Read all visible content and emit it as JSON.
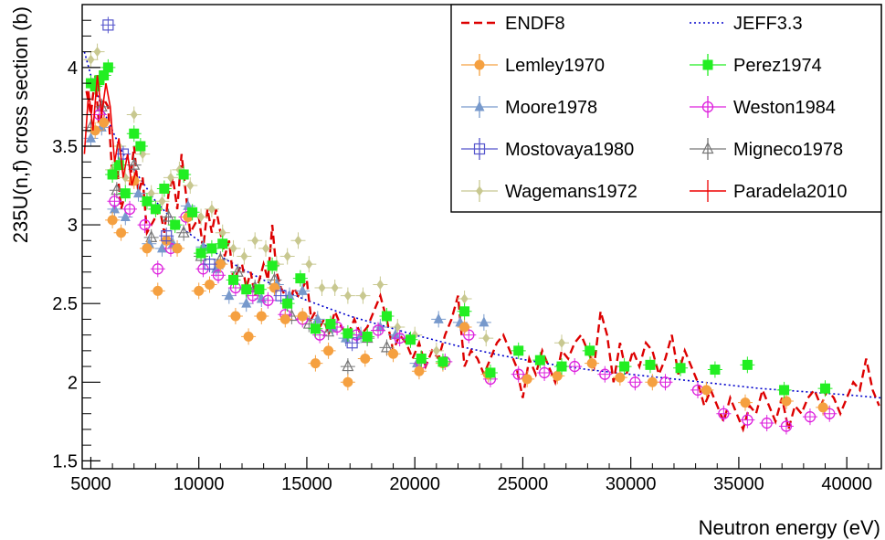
{
  "chart_data": {
    "type": "scatter",
    "title": "",
    "xlabel": "Neutron energy (eV)",
    "ylabel": "235U(n,f) cross section (b)",
    "xlim": [
      4600,
      41600
    ],
    "ylim": [
      1.45,
      4.4
    ],
    "x_ticks": [
      5000,
      10000,
      15000,
      20000,
      25000,
      30000,
      35000,
      40000
    ],
    "x_tick_labels": [
      "5000",
      "10000",
      "15000",
      "20000",
      "25000",
      "30000",
      "35000",
      "40000"
    ],
    "y_ticks": [
      1.5,
      2,
      2.5,
      3,
      3.5,
      4
    ],
    "y_tick_labels": [
      "1.5",
      "2",
      "2.5",
      "3",
      "3.5",
      "4"
    ],
    "grid": false,
    "legend_position": "top-right",
    "series": [
      {
        "name": "ENDF8",
        "kind": "line",
        "style": "dashed",
        "color": "#dd0000",
        "x": [
          4800,
          5000,
          5200,
          5400,
          5600,
          5800,
          6000,
          6200,
          6400,
          6600,
          6800,
          7000,
          7200,
          7400,
          7600,
          7800,
          8000,
          8200,
          8400,
          8600,
          8800,
          9000,
          9200,
          9400,
          9600,
          9800,
          10000,
          10200,
          10400,
          10600,
          10800,
          11000,
          11200,
          11400,
          11600,
          11800,
          12000,
          12200,
          12400,
          12600,
          12800,
          13000,
          13200,
          13400,
          13600,
          13800,
          14000,
          14200,
          14400,
          14600,
          14800,
          15000,
          15200,
          15400,
          15600,
          15800,
          16000,
          16300,
          16600,
          16900,
          17200,
          17500,
          17800,
          18100,
          18400,
          18700,
          19000,
          19300,
          19600,
          19900,
          20200,
          20500,
          20800,
          21100,
          21400,
          21700,
          22000,
          22300,
          22600,
          22900,
          23200,
          23500,
          23800,
          24100,
          24400,
          24700,
          25000,
          25300,
          25600,
          25900,
          26200,
          26500,
          26800,
          27100,
          27400,
          27700,
          28000,
          28300,
          28600,
          28900,
          29200,
          29500,
          29800,
          30100,
          30400,
          30700,
          31000,
          31300,
          31600,
          31900,
          32200,
          32500,
          32800,
          33100,
          33400,
          33700,
          34000,
          34300,
          34600,
          34900,
          35200,
          35500,
          35800,
          36100,
          36400,
          36700,
          37000,
          37300,
          37600,
          37900,
          38200,
          38500,
          38800,
          39100,
          39400,
          39700,
          40000,
          40300,
          40600,
          40900,
          41200,
          41500
        ],
        "y": [
          3.85,
          3.7,
          3.95,
          3.6,
          3.8,
          3.75,
          3.3,
          3.4,
          3.1,
          3.2,
          3.25,
          3.5,
          3.2,
          3.3,
          2.95,
          3.0,
          3.05,
          3.1,
          2.95,
          3.2,
          3.3,
          3.1,
          3.45,
          3.2,
          2.95,
          3.0,
          3.05,
          2.85,
          3.1,
          2.95,
          3.1,
          2.95,
          2.8,
          2.9,
          2.65,
          2.7,
          2.75,
          2.6,
          2.7,
          2.55,
          2.65,
          2.75,
          2.65,
          3.0,
          2.7,
          2.6,
          2.55,
          2.5,
          2.6,
          2.55,
          2.6,
          2.65,
          2.4,
          2.45,
          2.35,
          2.4,
          2.3,
          2.45,
          2.35,
          2.3,
          2.4,
          2.3,
          2.35,
          2.45,
          2.55,
          2.4,
          2.2,
          2.3,
          2.25,
          2.15,
          2.25,
          2.1,
          2.2,
          2.15,
          2.3,
          2.4,
          2.55,
          2.1,
          2.2,
          2.15,
          2.05,
          2.15,
          2.25,
          2.3,
          2.2,
          2.1,
          1.9,
          2.15,
          2.05,
          2.2,
          2.1,
          2.0,
          2.2,
          2.15,
          2.25,
          2.3,
          2.2,
          2.1,
          2.45,
          2.3,
          2.0,
          2.25,
          2.05,
          2.2,
          2.1,
          2.25,
          2.2,
          2.05,
          2.15,
          2.3,
          2.05,
          2.2,
          2.1,
          2.0,
          1.85,
          1.95,
          1.85,
          1.75,
          1.9,
          1.8,
          1.7,
          1.85,
          1.8,
          1.95,
          1.85,
          1.75,
          1.9,
          1.7,
          1.85,
          1.8,
          1.9,
          1.95,
          1.85,
          1.95,
          1.9,
          1.8,
          1.9,
          2.0,
          1.95,
          2.15,
          1.95,
          1.85
        ]
      },
      {
        "name": "JEFF3.3",
        "kind": "line",
        "style": "dotted",
        "color": "#0000cc",
        "x": [
          4700,
          5000,
          5500,
          6000,
          6500,
          7000,
          7500,
          8000,
          9000,
          10000,
          11000,
          12000,
          13000,
          14000,
          15000,
          16000,
          17000,
          18000,
          19000,
          20000,
          22000,
          24000,
          26000,
          28000,
          30000,
          32000,
          34000,
          36000,
          38000,
          40000,
          41600
        ],
        "y": [
          4.1,
          3.95,
          3.75,
          3.6,
          3.45,
          3.35,
          3.25,
          3.15,
          3.0,
          2.9,
          2.8,
          2.72,
          2.65,
          2.58,
          2.52,
          2.47,
          2.42,
          2.38,
          2.34,
          2.3,
          2.23,
          2.17,
          2.12,
          2.08,
          2.05,
          2.02,
          1.99,
          1.96,
          1.94,
          1.92,
          1.9
        ]
      },
      {
        "name": "Lemley1970",
        "kind": "marker",
        "marker": "circle",
        "color": "#f5a040",
        "x": [
          5200,
          5600,
          6000,
          6400,
          7000,
          7600,
          8100,
          8500,
          9000,
          9500,
          10000,
          10500,
          11000,
          11700,
          12300,
          12900,
          13500,
          14000,
          14800,
          15400,
          16000,
          16900,
          17700,
          19000,
          20200,
          21300,
          22300,
          23400,
          25200,
          26600,
          28200,
          29500,
          31000,
          33500,
          35300,
          37200,
          38900
        ],
        "y": [
          3.6,
          3.65,
          3.03,
          2.95,
          3.28,
          2.85,
          2.58,
          2.9,
          2.85,
          3.05,
          2.58,
          2.62,
          2.75,
          2.42,
          2.29,
          2.42,
          2.6,
          2.4,
          2.42,
          2.12,
          2.2,
          2.0,
          2.15,
          2.18,
          2.07,
          2.12,
          2.35,
          2.05,
          2.02,
          2.04,
          2.12,
          2.03,
          2.0,
          1.95,
          1.87,
          1.88,
          1.84
        ]
      },
      {
        "name": "Perez1974",
        "kind": "marker",
        "marker": "square",
        "color": "#22ee22",
        "x": [
          5000,
          5200,
          5400,
          5600,
          5800,
          6000,
          6300,
          6600,
          7000,
          7300,
          7600,
          8000,
          8400,
          8900,
          9300,
          9700,
          10100,
          10600,
          11100,
          11600,
          12200,
          12800,
          13400,
          14100,
          14700,
          15400,
          16100,
          16900,
          17800,
          18700,
          19800,
          20300,
          21300,
          22300,
          23500,
          24800,
          25800,
          26800,
          28100,
          29700,
          30900,
          32300,
          33900,
          35400,
          37100,
          39000
        ],
        "y": [
          3.9,
          3.88,
          3.92,
          3.95,
          4.0,
          3.32,
          3.38,
          3.2,
          3.58,
          3.5,
          3.15,
          3.1,
          3.23,
          3.0,
          3.32,
          3.08,
          2.82,
          2.85,
          2.88,
          2.65,
          2.59,
          2.59,
          2.74,
          2.5,
          2.66,
          2.34,
          2.37,
          2.31,
          2.29,
          2.42,
          2.27,
          2.15,
          2.13,
          2.45,
          2.06,
          2.2,
          2.14,
          2.1,
          2.2,
          2.1,
          2.11,
          2.09,
          2.08,
          2.11,
          1.95,
          1.96
        ]
      },
      {
        "name": "Moore1978",
        "kind": "marker",
        "marker": "triangle",
        "color": "#7799cc",
        "x": [
          5000,
          5500,
          6100,
          6600,
          7200,
          7700,
          8300,
          8800,
          9500,
          10200,
          10800,
          11400,
          12200,
          12900,
          13600,
          14200,
          14800,
          15500,
          16200,
          16800,
          17500,
          18400,
          19100,
          20100,
          21100,
          22100,
          23200
        ],
        "y": [
          3.55,
          3.62,
          3.1,
          3.05,
          3.2,
          2.88,
          2.85,
          2.88,
          3.12,
          2.86,
          2.72,
          2.55,
          2.5,
          2.53,
          2.62,
          2.55,
          2.58,
          2.4,
          2.35,
          2.28,
          2.3,
          2.35,
          2.3,
          2.12,
          2.4,
          2.38,
          2.38
        ]
      },
      {
        "name": "Weston1984",
        "kind": "marker",
        "marker": "open-circle",
        "color": "#dd22dd",
        "x": [
          5400,
          6100,
          6800,
          7500,
          8100,
          8700,
          9400,
          10200,
          10900,
          11700,
          12500,
          13200,
          14000,
          14800,
          15600,
          16400,
          17300,
          18300,
          19300,
          20300,
          21400,
          22500,
          23500,
          24800,
          26000,
          27400,
          28800,
          30200,
          31600,
          33100,
          34300,
          35400,
          36300,
          37200,
          38300,
          39200
        ],
        "y": [
          3.7,
          3.15,
          3.1,
          3.0,
          2.72,
          2.85,
          3.05,
          2.72,
          2.68,
          2.6,
          2.55,
          2.52,
          2.43,
          2.4,
          2.3,
          2.35,
          2.3,
          2.33,
          2.28,
          2.12,
          2.13,
          2.3,
          2.02,
          2.05,
          2.06,
          2.1,
          2.05,
          2.0,
          2.0,
          1.95,
          1.8,
          1.76,
          1.74,
          1.72,
          1.78,
          1.8
        ]
      },
      {
        "name": "Mostovaya1980",
        "kind": "marker",
        "marker": "open-square",
        "color": "#5555cc",
        "x": [
          5800,
          6500,
          8500,
          10500,
          13800,
          17100
        ],
        "y": [
          4.27,
          3.45,
          2.93,
          2.75,
          2.55,
          2.25
        ]
      },
      {
        "name": "Migneco1978",
        "kind": "marker",
        "marker": "open-triangle",
        "color": "#777777",
        "x": [
          5000,
          5500,
          6200,
          7000,
          7800,
          8600,
          9300,
          10100,
          11000,
          11800,
          12600,
          13500,
          14300,
          15100,
          16000,
          16900,
          17800,
          18700
        ],
        "y": [
          3.62,
          3.75,
          3.22,
          3.38,
          2.92,
          3.05,
          2.95,
          2.8,
          2.78,
          2.7,
          2.6,
          2.65,
          2.42,
          2.37,
          2.32,
          2.1,
          2.28,
          2.22
        ]
      },
      {
        "name": "Wagemans1972",
        "kind": "marker",
        "marker": "diamond",
        "color": "#c8c890",
        "x": [
          5000,
          5300,
          5600,
          6000,
          6300,
          6600,
          7000,
          7400,
          7800,
          8300,
          8700,
          9100,
          9600,
          10100,
          10600,
          11100,
          11600,
          12100,
          12600,
          13100,
          13600,
          14100,
          14600,
          15100,
          15700,
          16300,
          16900,
          17600,
          18400,
          19200,
          20000,
          21000,
          22300,
          23300,
          26800
        ],
        "y": [
          4.05,
          4.1,
          3.95,
          3.35,
          3.5,
          3.3,
          3.7,
          3.45,
          3.2,
          3.15,
          3.3,
          3.35,
          3.25,
          3.05,
          3.1,
          2.95,
          2.85,
          2.8,
          2.9,
          2.85,
          2.75,
          2.8,
          2.9,
          2.75,
          2.6,
          2.6,
          2.55,
          2.55,
          2.62,
          2.35,
          2.3,
          2.2,
          2.53,
          2.28,
          2.25
        ]
      },
      {
        "name": "Paradela2010",
        "kind": "line",
        "style": "solid",
        "color": "#ee0000",
        "x": [
          4700,
          4900,
          5100,
          5300,
          5500,
          5700,
          5900,
          6100,
          6300,
          6500,
          6700,
          6900,
          7100
        ],
        "y": [
          3.45,
          3.85,
          3.6,
          3.95,
          3.7,
          3.9,
          3.75,
          3.4,
          3.55,
          3.3,
          3.45,
          3.25,
          3.35
        ]
      }
    ]
  }
}
